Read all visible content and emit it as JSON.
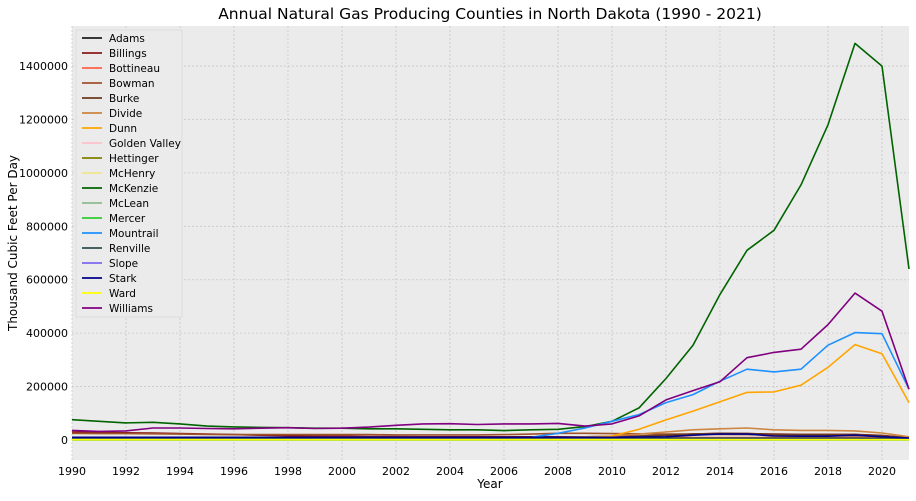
{
  "chart_data": {
    "type": "line",
    "title": "Annual Natural Gas Producing Counties in North Dakota (1990 - 2021)",
    "xlabel": "Year",
    "ylabel": "Thousand Cubic Feet Per Day",
    "xlim": [
      1990,
      2021
    ],
    "ylim": [
      -75000,
      1550000
    ],
    "xticks": [
      1990,
      1992,
      1994,
      1996,
      1998,
      2000,
      2002,
      2004,
      2006,
      2008,
      2010,
      2012,
      2014,
      2016,
      2018,
      2020
    ],
    "yticks": [
      0,
      200000,
      400000,
      600000,
      800000,
      1000000,
      1200000,
      1400000
    ],
    "grid": true,
    "legend_position": "top-left",
    "background": "#ebebeb",
    "x": [
      1990,
      1991,
      1992,
      1993,
      1994,
      1995,
      1996,
      1997,
      1998,
      1999,
      2000,
      2001,
      2002,
      2003,
      2004,
      2005,
      2006,
      2007,
      2008,
      2009,
      2010,
      2011,
      2012,
      2013,
      2014,
      2015,
      2016,
      2017,
      2018,
      2019,
      2020,
      2021
    ],
    "series": [
      {
        "name": "Adams",
        "color": "#1f1f1f",
        "values": [
          5000,
          5000,
          5000,
          5000,
          5000,
          5000,
          5000,
          5000,
          5000,
          5000,
          5000,
          5000,
          5000,
          5000,
          5000,
          5000,
          5000,
          5000,
          5000,
          5000,
          5000,
          5000,
          5000,
          5000,
          5000,
          5000,
          5000,
          5000,
          5000,
          5000,
          5000,
          3000
        ]
      },
      {
        "name": "Billings",
        "color": "#8b1a1a",
        "values": [
          30000,
          28000,
          27000,
          26000,
          24000,
          22000,
          20000,
          18000,
          16000,
          15000,
          14000,
          13000,
          13000,
          12000,
          12000,
          12000,
          12000,
          12000,
          12000,
          12000,
          13000,
          15000,
          18000,
          22000,
          25000,
          24000,
          22000,
          21000,
          21000,
          21000,
          17000,
          8000
        ]
      },
      {
        "name": "Bottineau",
        "color": "#ff6347",
        "values": [
          8000,
          8000,
          8000,
          8000,
          8000,
          8000,
          8000,
          8000,
          8000,
          8000,
          8000,
          8000,
          8000,
          8000,
          8000,
          8000,
          8000,
          8000,
          8000,
          8000,
          8000,
          9000,
          9000,
          9000,
          9000,
          9000,
          9000,
          9000,
          9000,
          9000,
          8000,
          5000
        ]
      },
      {
        "name": "Bowman",
        "color": "#a0522d",
        "values": [
          25000,
          24000,
          24000,
          23000,
          22000,
          21000,
          20000,
          20000,
          20000,
          20000,
          20000,
          20000,
          19000,
          19000,
          19000,
          19000,
          20000,
          22000,
          25000,
          25000,
          24000,
          23000,
          22000,
          22000,
          21000,
          20000,
          19000,
          18000,
          17000,
          16000,
          14000,
          10000
        ]
      },
      {
        "name": "Burke",
        "color": "#6b3a1f",
        "values": [
          4000,
          4000,
          4000,
          4000,
          4000,
          4000,
          4000,
          4000,
          4000,
          4000,
          4000,
          4000,
          4000,
          4000,
          4000,
          4000,
          5000,
          6000,
          8000,
          8000,
          10000,
          14000,
          18000,
          22000,
          24000,
          24000,
          21000,
          20000,
          20000,
          20000,
          16000,
          8000
        ]
      },
      {
        "name": "Divide",
        "color": "#cd853f",
        "values": [
          6000,
          6000,
          6000,
          6000,
          6000,
          6000,
          6000,
          6000,
          6000,
          6000,
          6000,
          6000,
          6000,
          6000,
          6000,
          6000,
          7000,
          9000,
          10000,
          12000,
          15000,
          22000,
          30000,
          38000,
          42000,
          45000,
          38000,
          36000,
          36000,
          34000,
          26000,
          12000
        ]
      },
      {
        "name": "Dunn",
        "color": "#ffa500",
        "values": [
          2000,
          2000,
          2000,
          2000,
          2000,
          2000,
          2000,
          2000,
          2000,
          2000,
          2000,
          2000,
          2000,
          2000,
          2000,
          2000,
          3000,
          3000,
          4000,
          7000,
          15000,
          40000,
          75000,
          108000,
          143000,
          178000,
          180000,
          205000,
          272000,
          357000,
          323000,
          140000
        ]
      },
      {
        "name": "Golden Valley",
        "color": "#ffc0cb",
        "values": [
          2000,
          2000,
          2000,
          2000,
          2000,
          2000,
          2000,
          2000,
          2000,
          2000,
          2000,
          2000,
          2000,
          2000,
          2000,
          2000,
          2000,
          2000,
          2000,
          2000,
          2000,
          2000,
          2000,
          2000,
          2000,
          2000,
          2000,
          2000,
          2000,
          2000,
          2000,
          1000
        ]
      },
      {
        "name": "Hettinger",
        "color": "#808000",
        "values": [
          1000,
          1000,
          1000,
          1000,
          1000,
          1000,
          1000,
          1000,
          1000,
          1000,
          1000,
          1000,
          1000,
          1000,
          1000,
          1000,
          1000,
          1000,
          1000,
          1000,
          1000,
          1000,
          1000,
          1000,
          1000,
          1000,
          1000,
          1000,
          1000,
          1000,
          1000,
          1000
        ]
      },
      {
        "name": "McHenry",
        "color": "#f0e68c",
        "values": [
          500,
          500,
          500,
          500,
          500,
          500,
          500,
          500,
          500,
          500,
          500,
          500,
          500,
          500,
          500,
          500,
          500,
          500,
          500,
          500,
          500,
          500,
          500,
          500,
          500,
          500,
          500,
          500,
          500,
          500,
          500,
          500
        ]
      },
      {
        "name": "McKenzie",
        "color": "#006400",
        "values": [
          76000,
          70000,
          64000,
          66000,
          60000,
          52000,
          49000,
          47000,
          46000,
          44000,
          44000,
          42000,
          42000,
          40000,
          38000,
          38000,
          35000,
          38000,
          40000,
          50000,
          70000,
          120000,
          230000,
          355000,
          545000,
          710000,
          785000,
          955000,
          1180000,
          1485000,
          1400000,
          640000
        ]
      },
      {
        "name": "McLean",
        "color": "#8fbc8f",
        "values": [
          500,
          500,
          500,
          500,
          500,
          500,
          500,
          500,
          500,
          500,
          500,
          500,
          500,
          500,
          500,
          500,
          500,
          500,
          500,
          500,
          500,
          500,
          500,
          500,
          500,
          500,
          500,
          500,
          500,
          500,
          500,
          500
        ]
      },
      {
        "name": "Mercer",
        "color": "#32cd32",
        "values": [
          0,
          0,
          0,
          0,
          0,
          0,
          0,
          0,
          0,
          0,
          0,
          0,
          0,
          0,
          0,
          0,
          0,
          0,
          0,
          0,
          0,
          0,
          0,
          0,
          0,
          0,
          0,
          0,
          0,
          0,
          0,
          0
        ]
      },
      {
        "name": "Mountrail",
        "color": "#1e90ff",
        "values": [
          3000,
          3000,
          3000,
          3000,
          3000,
          3000,
          3000,
          3000,
          3000,
          3000,
          3000,
          3000,
          3000,
          3000,
          3000,
          3000,
          5000,
          10000,
          25000,
          45000,
          70000,
          95000,
          140000,
          170000,
          220000,
          265000,
          255000,
          265000,
          355000,
          402000,
          398000,
          190000
        ]
      },
      {
        "name": "Renville",
        "color": "#2f4f4f",
        "values": [
          7000,
          7000,
          7000,
          7000,
          7000,
          7000,
          7000,
          7000,
          7000,
          7000,
          7000,
          7000,
          7000,
          7000,
          7000,
          7000,
          7000,
          7000,
          7000,
          7000,
          7000,
          7000,
          7000,
          7000,
          7000,
          7000,
          7000,
          7000,
          7000,
          7000,
          6000,
          4000
        ]
      },
      {
        "name": "Slope",
        "color": "#7b68ee",
        "values": [
          1000,
          1000,
          1000,
          1000,
          1000,
          1000,
          1000,
          1000,
          1000,
          1000,
          1000,
          1000,
          1000,
          1000,
          1000,
          1000,
          1000,
          1000,
          1000,
          1000,
          1000,
          1000,
          1000,
          1000,
          1000,
          1000,
          1000,
          1000,
          1000,
          1000,
          1000,
          1000
        ]
      },
      {
        "name": "Stark",
        "color": "#00008b",
        "values": [
          10000,
          10000,
          10000,
          10000,
          10000,
          10000,
          10000,
          10000,
          10000,
          10000,
          10000,
          10000,
          10000,
          10000,
          10000,
          10000,
          10000,
          10000,
          10000,
          10000,
          10000,
          11000,
          12000,
          18000,
          22000,
          22000,
          15000,
          14000,
          14000,
          18000,
          12000,
          7000
        ]
      },
      {
        "name": "Ward",
        "color": "#ffff00",
        "values": [
          1000,
          1000,
          1000,
          1000,
          1000,
          1000,
          1000,
          1000,
          1000,
          1000,
          1000,
          1000,
          1000,
          1000,
          1000,
          1000,
          1000,
          1000,
          1000,
          1000,
          1000,
          1000,
          1000,
          1000,
          1000,
          1000,
          1000,
          1000,
          1000,
          1000,
          1000,
          1000
        ]
      },
      {
        "name": "Williams",
        "color": "#800080",
        "values": [
          36000,
          32000,
          34000,
          45000,
          45000,
          43000,
          42000,
          44000,
          46000,
          43000,
          44000,
          48000,
          55000,
          60000,
          61000,
          58000,
          60000,
          60000,
          62000,
          52000,
          60000,
          90000,
          150000,
          185000,
          218000,
          308000,
          328000,
          340000,
          432000,
          550000,
          482000,
          190000
        ]
      }
    ]
  }
}
